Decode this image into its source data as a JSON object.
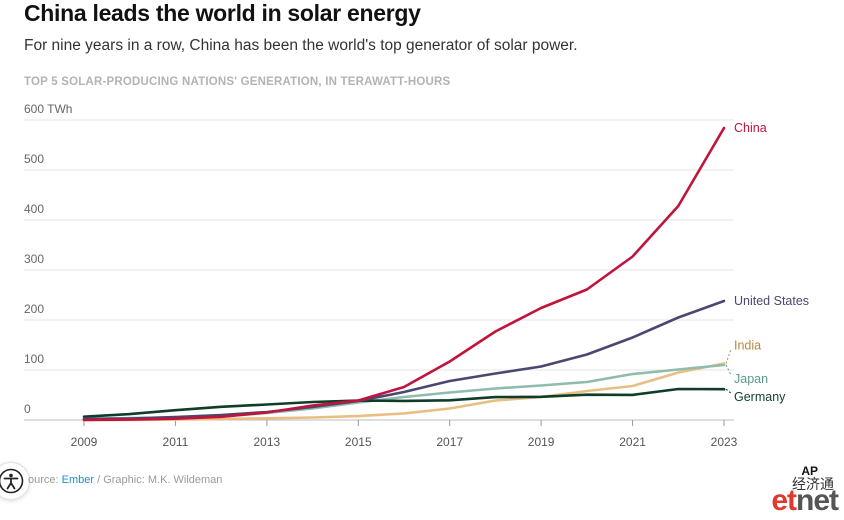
{
  "header": {
    "title": "China leads the world in solar energy",
    "subtitle": "For nine years in a row, China has been the world's top generator of solar power.",
    "chart_label": "TOP 5 SOLAR-PRODUCING NATIONS' GENERATION, IN TERAWATT-HOURS"
  },
  "footer": {
    "source_prefix": "ource: ",
    "source_link": "Ember",
    "credit": " / Graphic: M.K. Wildeman"
  },
  "logo": {
    "ap": "AP",
    "chinese": "经济通",
    "et": "et",
    "net": "net"
  },
  "colors": {
    "China": "#c0143c",
    "United States": "#4a4870",
    "India": "#e8bf80",
    "Japan": "#8fbcac",
    "Germany": "#0f3d2a",
    "label_India": "#b88a3e",
    "label_Japan": "#5e9a8a"
  },
  "chart_data": {
    "type": "line",
    "title": "TOP 5 SOLAR-PRODUCING NATIONS' GENERATION, IN TERAWATT-HOURS",
    "x": [
      2009,
      2010,
      2011,
      2012,
      2013,
      2014,
      2015,
      2016,
      2017,
      2018,
      2019,
      2020,
      2021,
      2022,
      2023
    ],
    "xticks": [
      "2009",
      "2011",
      "2013",
      "2015",
      "2017",
      "2019",
      "2021",
      "2023"
    ],
    "yticks": [
      "0",
      "100",
      "200",
      "300",
      "400",
      "500",
      "600 TWh"
    ],
    "ylim": [
      0,
      600
    ],
    "grid": true,
    "legend": "labels at line ends",
    "series": [
      {
        "name": "China",
        "values": [
          0.3,
          0.7,
          2.6,
          6.4,
          15,
          29,
          39,
          66,
          117,
          177,
          224,
          261,
          327,
          428,
          584
        ]
      },
      {
        "name": "United States",
        "values": [
          1.9,
          3,
          5.8,
          10,
          16,
          26,
          38,
          56,
          78,
          93,
          107,
          131,
          165,
          205,
          238
        ]
      },
      {
        "name": "India",
        "values": [
          0,
          0.1,
          0.8,
          2,
          3.4,
          5,
          7.8,
          13.3,
          23,
          39,
          46,
          58,
          68,
          95,
          113
        ]
      },
      {
        "name": "Japan",
        "values": [
          2.8,
          3.8,
          5.2,
          7,
          14,
          23,
          35,
          46,
          55,
          63,
          69,
          76,
          92,
          101,
          110
        ]
      },
      {
        "name": "Germany",
        "values": [
          6.6,
          11.7,
          19.6,
          26.4,
          31,
          36,
          38.7,
          38.1,
          39.4,
          45.8,
          46.4,
          50.6,
          50.2,
          62,
          61.6
        ]
      }
    ]
  }
}
